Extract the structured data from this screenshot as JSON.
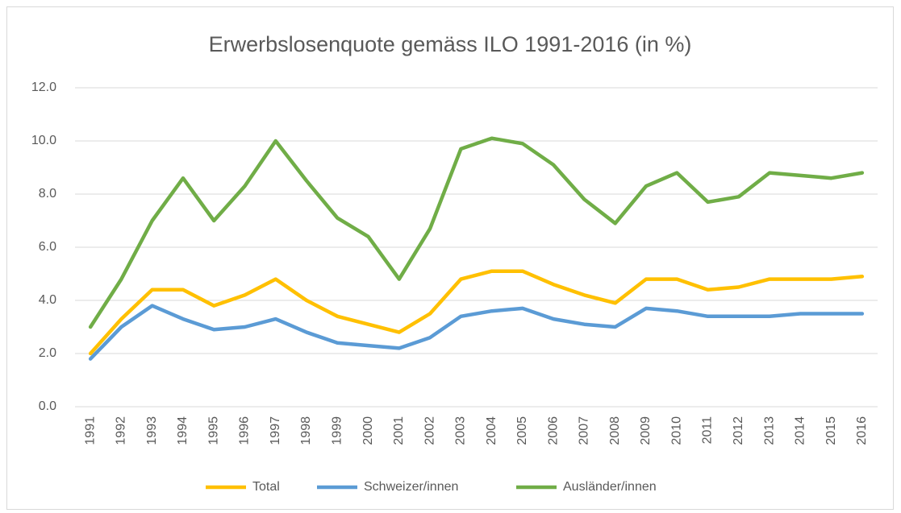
{
  "chart_data": {
    "type": "line",
    "title": "Erwerbslosenquote gemäss ILO 1991-2016 (in %)",
    "categories": [
      "1991",
      "1992",
      "1993",
      "1994",
      "1995",
      "1996",
      "1997",
      "1998",
      "1999",
      "2000",
      "2001",
      "2002",
      "2003",
      "2004",
      "2005",
      "2006",
      "2007",
      "2008",
      "2009",
      "2010",
      "2011",
      "2012",
      "2013",
      "2014",
      "2015",
      "2016"
    ],
    "series": [
      {
        "name": "Total",
        "color": "#ffc000",
        "values": [
          2.0,
          3.3,
          4.4,
          4.4,
          3.8,
          4.2,
          4.8,
          4.0,
          3.4,
          3.1,
          2.8,
          3.5,
          4.8,
          5.1,
          5.1,
          4.6,
          4.2,
          3.9,
          4.8,
          4.8,
          4.4,
          4.5,
          4.8,
          4.8,
          4.8,
          4.9
        ]
      },
      {
        "name": "Schweizer/innen",
        "color": "#5b9bd5",
        "values": [
          1.8,
          3.0,
          3.8,
          3.3,
          2.9,
          3.0,
          3.3,
          2.8,
          2.4,
          2.3,
          2.2,
          2.6,
          3.4,
          3.6,
          3.7,
          3.3,
          3.1,
          3.0,
          3.7,
          3.6,
          3.4,
          3.4,
          3.4,
          3.5,
          3.5,
          3.5
        ]
      },
      {
        "name": "Ausländer/innen",
        "color": "#70ad47",
        "values": [
          3.0,
          4.8,
          7.0,
          8.6,
          7.0,
          8.3,
          10.0,
          8.5,
          7.1,
          6.4,
          4.8,
          6.7,
          9.7,
          10.1,
          9.9,
          9.1,
          7.8,
          6.9,
          8.3,
          8.8,
          7.7,
          7.9,
          8.8,
          8.7,
          8.6,
          8.8
        ]
      }
    ],
    "ylim": [
      0,
      12
    ],
    "yticks": [
      {
        "value": 0,
        "label": "0.0"
      },
      {
        "value": 2,
        "label": "2.0"
      },
      {
        "value": 4,
        "label": "4.0"
      },
      {
        "value": 6,
        "label": "6.0"
      },
      {
        "value": 8,
        "label": "8.0"
      },
      {
        "value": 10,
        "label": "10.0"
      },
      {
        "value": 12,
        "label": "12.0"
      }
    ],
    "grid": true,
    "legend": "bottom"
  }
}
